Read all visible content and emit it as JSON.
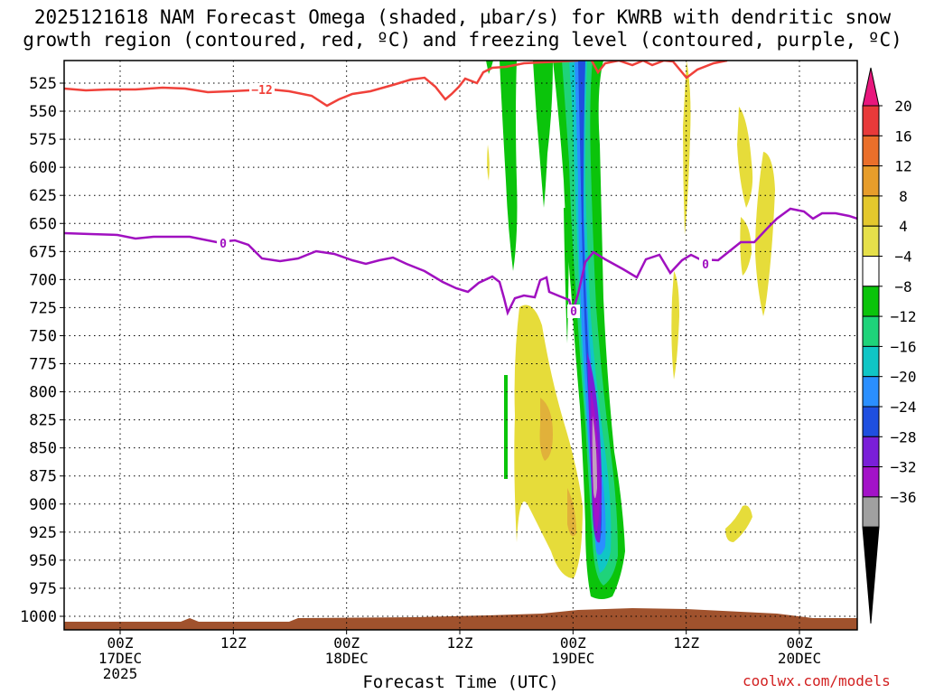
{
  "title_line1": "2025121618 NAM Forecast Omega (shaded, µbar/s) for KWRB with dendritic snow",
  "title_line2": "growth region (contoured, red, ºC) and freezing level (contoured, purple, ºC)",
  "x_axis_title": "Forecast Time (UTC)",
  "credit": "coolwx.com/models",
  "chart_data": {
    "type": "heatmap",
    "variable": "Omega",
    "units": "µbar/s",
    "y_ticks": [
      525,
      550,
      575,
      600,
      625,
      650,
      675,
      700,
      725,
      750,
      775,
      800,
      825,
      850,
      875,
      900,
      925,
      950,
      975,
      1000
    ],
    "x_ticks": [
      {
        "hour": 0,
        "lines": [
          "00Z",
          "17DEC",
          "2025"
        ]
      },
      {
        "hour": 12,
        "lines": [
          "12Z"
        ]
      },
      {
        "hour": 24,
        "lines": [
          "00Z",
          "18DEC"
        ]
      },
      {
        "hour": 36,
        "lines": [
          "12Z"
        ]
      },
      {
        "hour": 48,
        "lines": [
          "00Z",
          "19DEC"
        ]
      },
      {
        "hour": 60,
        "lines": [
          "12Z"
        ]
      },
      {
        "hour": 72,
        "lines": [
          "00Z",
          "20DEC"
        ]
      }
    ],
    "colorbar_labels": [
      "20",
      "16",
      "12",
      "8",
      "4",
      "−4",
      "−8",
      "−12",
      "−16",
      "−20",
      "−24",
      "−28",
      "−32",
      "−36"
    ],
    "colorbar_colors": [
      "#e8177d",
      "#e83a3a",
      "#ea6f2a",
      "#e79d2b",
      "#e4c82d",
      "#e6e04a",
      "#ffffff",
      "#0bc40b",
      "#1fd37a",
      "#10c6c6",
      "#2a8fff",
      "#1f4fe0",
      "#7a1fd8",
      "#a312c8",
      "#a0a0a0",
      "#000000"
    ],
    "contours": [
      {
        "label": "−12",
        "color": "#f0413a"
      },
      {
        "label": "0",
        "color": "#a010c0"
      }
    ],
    "grid": "dotted"
  }
}
